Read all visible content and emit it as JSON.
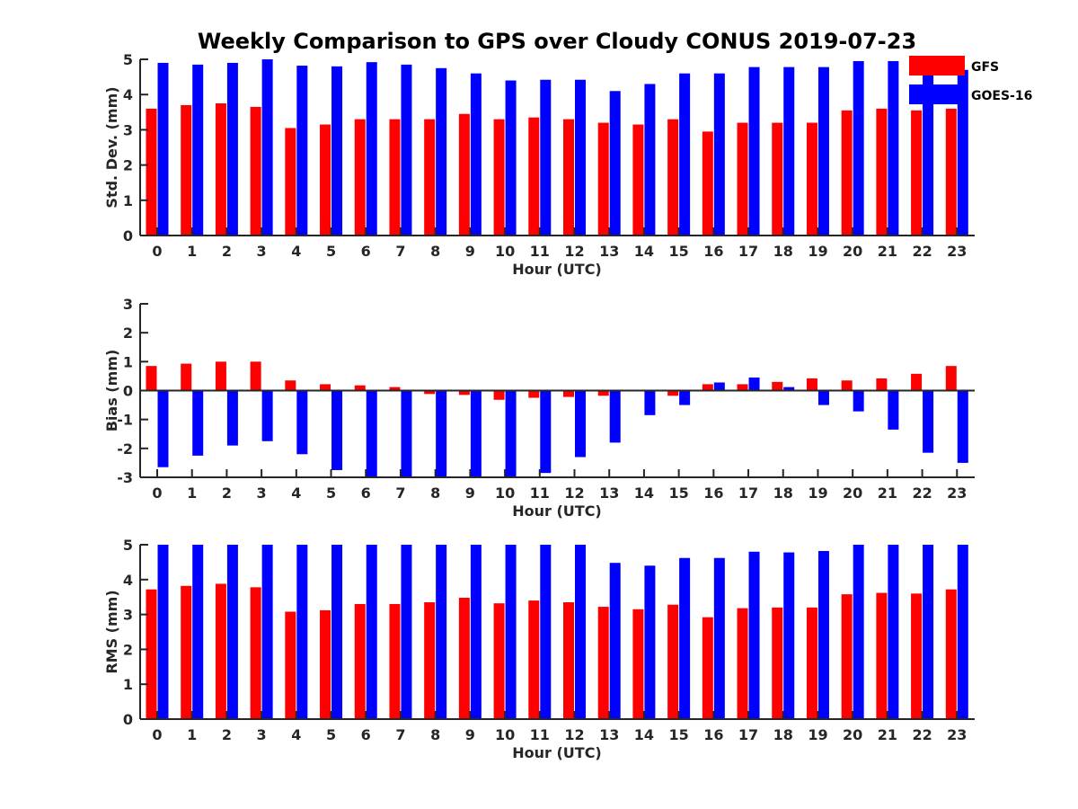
{
  "chart_data": {
    "type": "bar",
    "title": "Weekly Comparison to GPS over Cloudy CONUS 2019-07-23",
    "legend": {
      "placement": "top-right",
      "entries": [
        {
          "label": "GFS",
          "color": "#ff0000"
        },
        {
          "label": "GOES-16",
          "color": "#0000ff"
        }
      ]
    },
    "categories": [
      "0",
      "1",
      "2",
      "3",
      "4",
      "5",
      "6",
      "7",
      "8",
      "9",
      "10",
      "11",
      "12",
      "13",
      "14",
      "15",
      "16",
      "17",
      "18",
      "19",
      "20",
      "21",
      "22",
      "23"
    ],
    "panels": [
      {
        "id": "stddev",
        "ylabel": "Std. Dev. (mm)",
        "xlabel": "Hour (UTC)",
        "ylim": [
          0,
          5
        ],
        "yticks": [
          0,
          1,
          2,
          3,
          4,
          5
        ],
        "series": [
          {
            "name": "GFS",
            "color": "#ff0000",
            "values": [
              3.6,
              3.7,
              3.75,
              3.65,
              3.05,
              3.15,
              3.3,
              3.3,
              3.3,
              3.45,
              3.3,
              3.35,
              3.3,
              3.2,
              3.15,
              3.3,
              2.95,
              3.2,
              3.2,
              3.2,
              3.55,
              3.6,
              3.55,
              3.6
            ]
          },
          {
            "name": "GOES-16",
            "color": "#0000ff",
            "values": [
              4.9,
              4.85,
              4.9,
              5.0,
              4.82,
              4.8,
              4.92,
              4.85,
              4.75,
              4.6,
              4.4,
              4.42,
              4.42,
              4.1,
              4.3,
              4.6,
              4.6,
              4.78,
              4.78,
              4.78,
              4.95,
              4.95,
              4.88,
              4.7
            ]
          }
        ]
      },
      {
        "id": "bias",
        "ylabel": "Bias (mm)",
        "xlabel": "Hour (UTC)",
        "ylim": [
          -3,
          3
        ],
        "yticks": [
          -3,
          -2,
          -1,
          0,
          1,
          2,
          3
        ],
        "series": [
          {
            "name": "GFS",
            "color": "#ff0000",
            "values": [
              0.85,
              0.93,
              1.0,
              1.0,
              0.35,
              0.22,
              0.18,
              0.12,
              -0.12,
              -0.15,
              -0.32,
              -0.25,
              -0.22,
              -0.18,
              0.0,
              -0.18,
              0.22,
              0.22,
              0.3,
              0.42,
              0.35,
              0.42,
              0.58,
              0.85
            ]
          },
          {
            "name": "GOES-16",
            "color": "#0000ff",
            "values": [
              -2.65,
              -2.25,
              -1.9,
              -1.75,
              -2.2,
              -2.75,
              -3.0,
              -3.0,
              -3.0,
              -3.0,
              -3.0,
              -2.85,
              -2.3,
              -1.8,
              -0.85,
              -0.5,
              0.28,
              0.45,
              0.12,
              -0.5,
              -0.72,
              -1.35,
              -2.15,
              -2.5
            ]
          }
        ]
      },
      {
        "id": "rms",
        "ylabel": "RMS (mm)",
        "xlabel": "Hour (UTC)",
        "ylim": [
          0,
          5
        ],
        "yticks": [
          0,
          1,
          2,
          3,
          4,
          5
        ],
        "series": [
          {
            "name": "GFS",
            "color": "#ff0000",
            "values": [
              3.72,
              3.82,
              3.88,
              3.78,
              3.08,
              3.12,
              3.3,
              3.3,
              3.35,
              3.48,
              3.32,
              3.4,
              3.35,
              3.22,
              3.15,
              3.28,
              2.92,
              3.18,
              3.2,
              3.2,
              3.58,
              3.62,
              3.6,
              3.72
            ]
          },
          {
            "name": "GOES-16",
            "color": "#0000ff",
            "values": [
              5.0,
              5.0,
              5.0,
              5.0,
              5.0,
              5.0,
              5.0,
              5.0,
              5.0,
              5.0,
              5.0,
              5.0,
              5.0,
              4.48,
              4.4,
              4.62,
              4.62,
              4.8,
              4.78,
              4.82,
              5.0,
              5.0,
              5.0,
              5.0
            ]
          }
        ]
      }
    ]
  }
}
